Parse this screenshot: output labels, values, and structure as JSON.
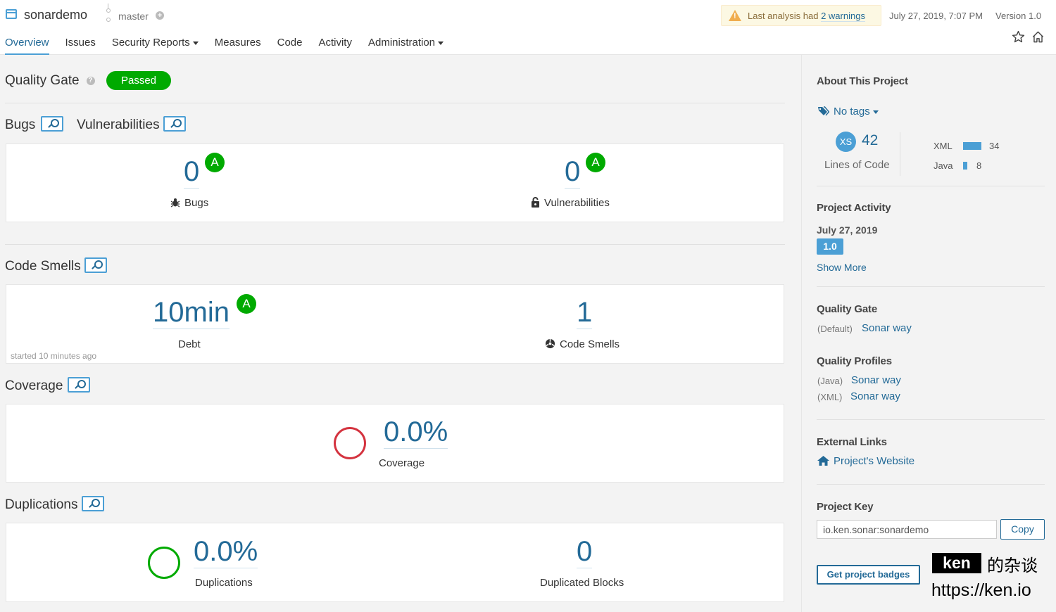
{
  "header": {
    "project_name": "sonardemo",
    "branch": "master",
    "branch_add": "+",
    "warning_prefix": "Last analysis had ",
    "warning_link": "2 warnings",
    "analysis_date": "July 27, 2019, 7:07 PM",
    "version": "Version 1.0"
  },
  "nav": {
    "overview": "Overview",
    "issues": "Issues",
    "security_reports": "Security Reports",
    "measures": "Measures",
    "code": "Code",
    "activity": "Activity",
    "administration": "Administration"
  },
  "quality_gate": {
    "title": "Quality Gate",
    "help": "?",
    "status": "Passed"
  },
  "bugs_section": {
    "bugs_title": "Bugs",
    "vuln_title": "Vulnerabilities"
  },
  "bugs": {
    "value": "0",
    "rating": "A",
    "label": "Bugs"
  },
  "vulnerabilities": {
    "value": "0",
    "rating": "A",
    "label": "Vulnerabilities"
  },
  "code_smells_section": {
    "title": "Code Smells"
  },
  "debt": {
    "value": "10min",
    "rating": "A",
    "label": "Debt",
    "started": "started 10 minutes ago"
  },
  "code_smells": {
    "value": "1",
    "label": "Code Smells"
  },
  "coverage_section": {
    "title": "Coverage"
  },
  "coverage": {
    "value": "0.0%",
    "label": "Coverage"
  },
  "duplications_section": {
    "title": "Duplications"
  },
  "duplications": {
    "value": "0.0%",
    "label": "Duplications"
  },
  "duplicated_blocks": {
    "value": "0",
    "label": "Duplicated Blocks"
  },
  "sidebar": {
    "about_title": "About This Project",
    "tags": "No tags",
    "size_badge": "XS",
    "lines_of_code": "42",
    "lines_of_code_label": "Lines of Code",
    "languages": [
      {
        "name": "XML",
        "count": "34",
        "lines": 34
      },
      {
        "name": "Java",
        "count": "8",
        "lines": 8
      }
    ],
    "activity_title": "Project Activity",
    "activity_date": "July 27, 2019",
    "activity_version": "1.0",
    "show_more": "Show More",
    "qg_title": "Quality Gate",
    "qg_default": "(Default)",
    "qg_link": "Sonar way",
    "qp_title": "Quality Profiles",
    "qp_java_lang": "(Java)",
    "qp_java_link": "Sonar way",
    "qp_xml_lang": "(XML)",
    "qp_xml_link": "Sonar way",
    "ext_title": "External Links",
    "ext_link": "Project's Website",
    "key_title": "Project Key",
    "key_value": "io.ken.sonar:sonardemo",
    "copy": "Copy",
    "badges": "Get project badges"
  },
  "watermark": {
    "name": "ken",
    "suffix": "的杂谈",
    "url": "https://ken.io"
  },
  "colors": {
    "accent": "#4b9fd5",
    "link": "#236a97",
    "pass": "#00aa00",
    "fail": "#d4333f",
    "warning_bg": "#fcf8e3"
  }
}
